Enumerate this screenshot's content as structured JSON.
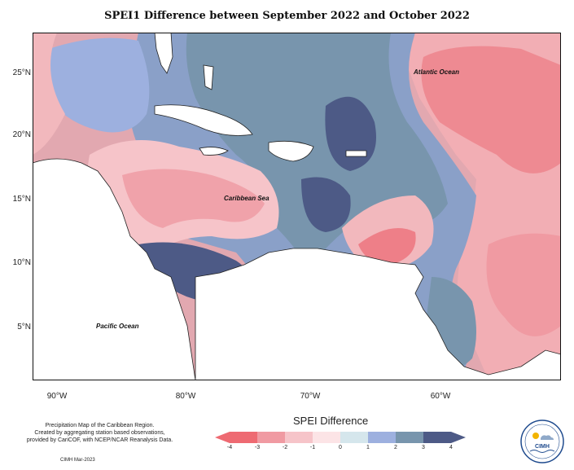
{
  "map": {
    "title": "SPEI1 Difference between September 2022 and October 2022",
    "lat_labels": [
      "25°N",
      "20°N",
      "15°N",
      "10°N",
      "5°N"
    ],
    "lon_labels": [
      "90°W",
      "80°W",
      "70°W",
      "60°W"
    ],
    "ocean_labels": {
      "atlantic": "Atlantic Ocean",
      "caribbean": "Caribbean Sea",
      "pacific": "Pacific Ocean"
    }
  },
  "legend": {
    "title": "SPEI Difference",
    "ticks": [
      "-4",
      "-3",
      "-2",
      "-1",
      "0",
      "1",
      "2",
      "3",
      "4"
    ],
    "colors": [
      "#ee6a72",
      "#f09aa2",
      "#f6c4c9",
      "#fce4e6",
      "#d5e6ec",
      "#9db0df",
      "#7895ad",
      "#4d5a86"
    ]
  },
  "credits": {
    "line1": "Precipitation Map of the Caribbean Region.",
    "line2": "Created by aggregating station based observations,",
    "line3": "provided by CariCOF, with NCEP/NCAR Reanalysis Data.",
    "stamp": "CIMH Mar-2023"
  },
  "logo": {
    "text": "CIMH"
  }
}
